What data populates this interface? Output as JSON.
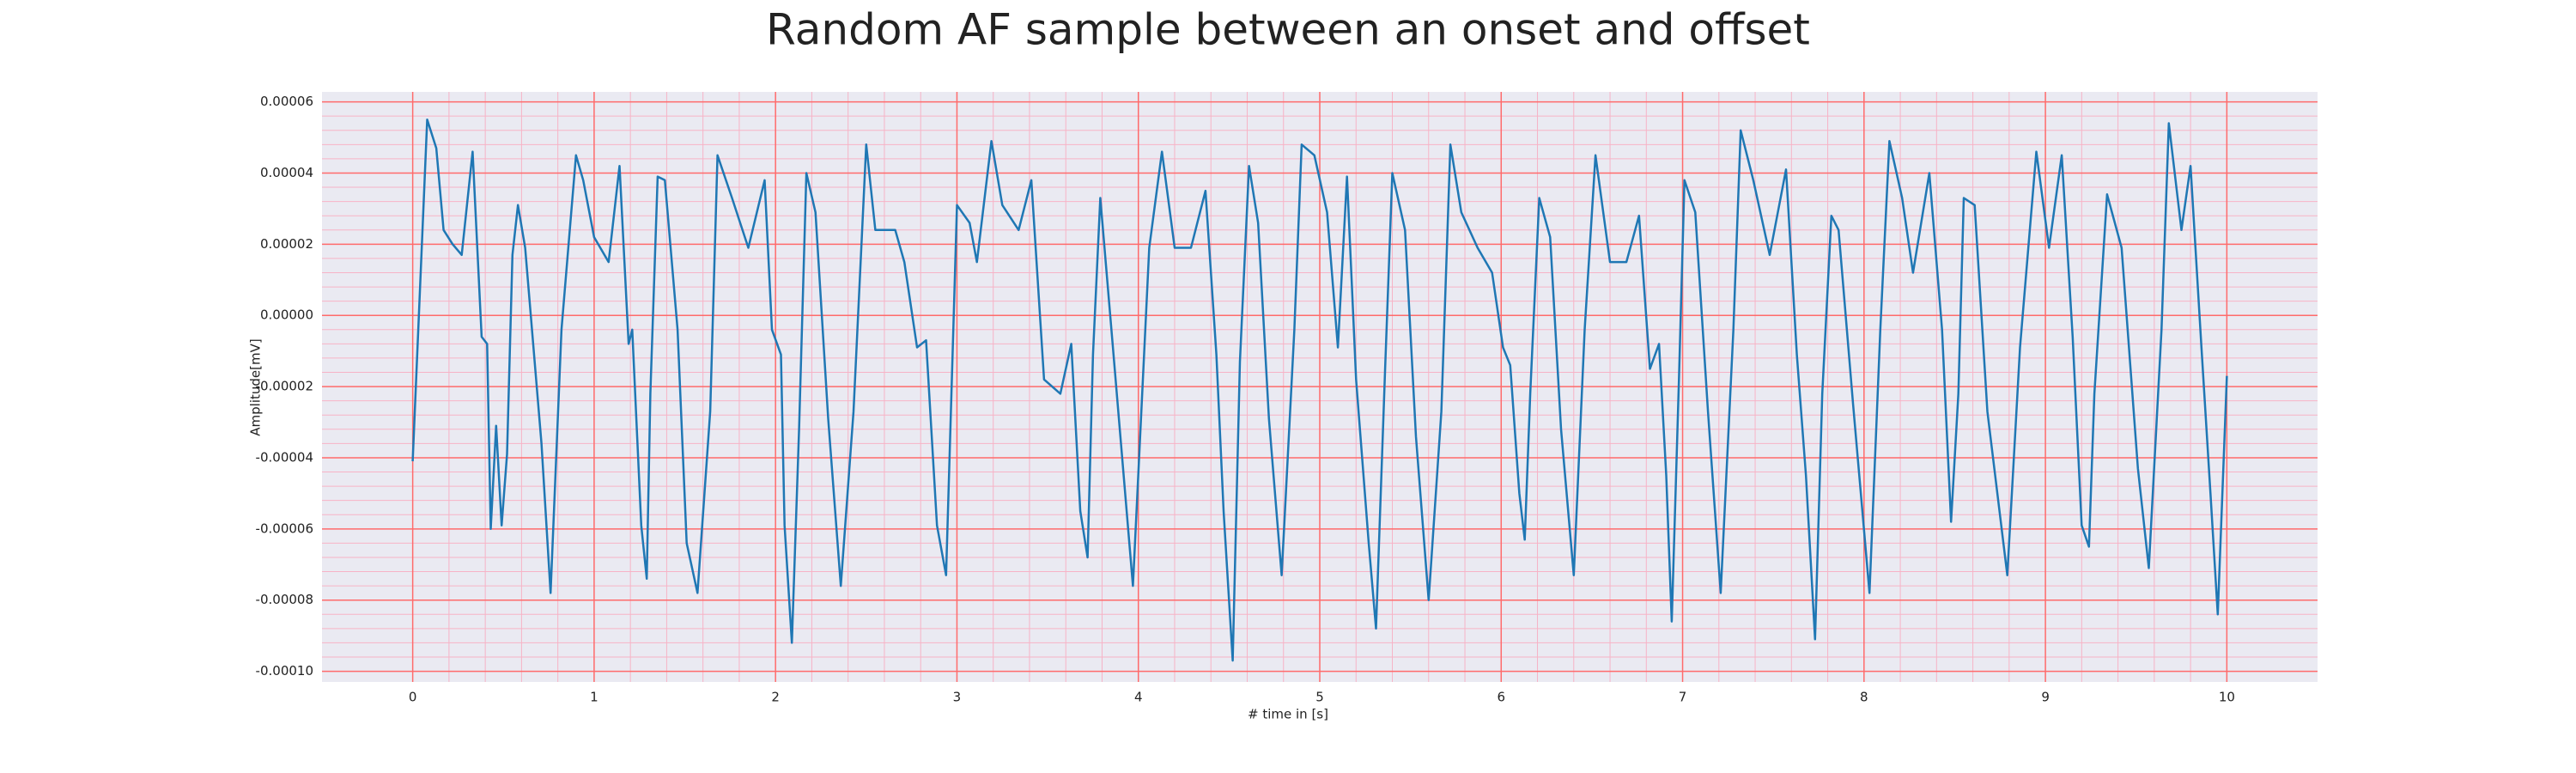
{
  "chart_data": {
    "type": "line",
    "title": "Random AF sample between an onset and offset",
    "xlabel": "# time in [s]",
    "ylabel": "Amplitude[mV]",
    "xlim": [
      -0.5,
      10.5
    ],
    "ylim": [
      -0.000103,
      6.28e-05
    ],
    "xticks": [
      0,
      1,
      2,
      3,
      4,
      5,
      6,
      7,
      8,
      9,
      10
    ],
    "yticks": [
      {
        "value": -0.0001,
        "label": "-0.00010"
      },
      {
        "value": -8e-05,
        "label": "-0.00008"
      },
      {
        "value": -6e-05,
        "label": "-0.00006"
      },
      {
        "value": -4e-05,
        "label": "-0.00004"
      },
      {
        "value": -2e-05,
        "label": "-0.00002"
      },
      {
        "value": 0,
        "label": "0.00000"
      },
      {
        "value": 2e-05,
        "label": "0.00002"
      },
      {
        "value": 4e-05,
        "label": "0.00004"
      },
      {
        "value": 6e-05,
        "label": "0.00006"
      }
    ],
    "grid": true,
    "grid_color": "#ff6b6b",
    "minor_grid": true,
    "minor_grid_color": "#f7b3c6",
    "background": "#eaeaf2",
    "series": [
      {
        "color": "#1f77b4",
        "x": [
          0,
          0.08,
          0.13,
          0.17,
          0.22,
          0.27,
          0.33,
          0.38,
          0.41,
          0.43,
          0.46,
          0.49,
          0.52,
          0.55,
          0.58,
          0.62,
          0.71,
          0.76,
          0.82,
          0.9,
          0.94,
          1.0,
          1.08,
          1.14,
          1.19,
          1.21,
          1.26,
          1.29,
          1.31,
          1.35,
          1.39,
          1.46,
          1.51,
          1.57,
          1.64,
          1.68,
          1.76,
          1.85,
          1.94,
          1.98,
          2.03,
          2.05,
          2.09,
          2.13,
          2.17,
          2.22,
          2.29,
          2.36,
          2.43,
          2.5,
          2.55,
          2.66,
          2.71,
          2.78,
          2.83,
          2.89,
          2.94,
          3.0,
          3.07,
          3.11,
          3.19,
          3.25,
          3.34,
          3.41,
          3.48,
          3.57,
          3.63,
          3.68,
          3.72,
          3.75,
          3.79,
          3.86,
          3.97,
          4.06,
          4.13,
          4.2,
          4.29,
          4.37,
          4.43,
          4.47,
          4.52,
          4.56,
          4.61,
          4.66,
          4.72,
          4.79,
          4.86,
          4.9,
          4.97,
          5.04,
          5.1,
          5.15,
          5.2,
          5.27,
          5.31,
          5.36,
          5.4,
          5.47,
          5.53,
          5.6,
          5.67,
          5.72,
          5.78,
          5.87,
          5.95,
          6.01,
          6.05,
          6.1,
          6.13,
          6.16,
          6.21,
          6.27,
          6.33,
          6.4,
          6.46,
          6.52,
          6.6,
          6.69,
          6.76,
          6.82,
          6.87,
          6.91,
          6.94,
          6.98,
          7.01,
          7.07,
          7.14,
          7.21,
          7.28,
          7.32,
          7.39,
          7.48,
          7.57,
          7.63,
          7.68,
          7.73,
          7.77,
          7.82,
          7.86,
          7.94,
          8.03,
          8.09,
          8.14,
          8.21,
          8.27,
          8.36,
          8.43,
          8.48,
          8.52,
          8.55,
          8.61,
          8.68,
          8.79,
          8.86,
          8.95,
          9.02,
          9.09,
          9.15,
          9.2,
          9.24,
          9.27,
          9.34,
          9.42,
          9.51,
          9.57,
          9.64,
          9.68,
          9.75,
          9.8,
          9.86,
          9.91,
          9.95,
          10.0
        ],
        "values": [
          -4.1e-05,
          5.5e-05,
          4.7e-05,
          2.4e-05,
          2e-05,
          1.7e-05,
          4.6e-05,
          -6e-06,
          -8e-06,
          -6e-05,
          -3.1e-05,
          -5.9e-05,
          -3.9e-05,
          1.7e-05,
          3.1e-05,
          1.9e-05,
          -3.6e-05,
          -7.8e-05,
          -4e-06,
          4.5e-05,
          3.8e-05,
          2.2e-05,
          1.5e-05,
          4.2e-05,
          -8e-06,
          -4e-06,
          -5.9e-05,
          -7.4e-05,
          -2.2e-05,
          3.9e-05,
          3.8e-05,
          -4e-06,
          -6.4e-05,
          -7.8e-05,
          -2.7e-05,
          4.5e-05,
          3.3e-05,
          1.9e-05,
          3.8e-05,
          -4e-06,
          -1.1e-05,
          -5.9e-05,
          -9.2e-05,
          -3.2e-05,
          4e-05,
          2.9e-05,
          -2.9e-05,
          -7.6e-05,
          -2.7e-05,
          4.8e-05,
          2.4e-05,
          2.4e-05,
          1.5e-05,
          -9e-06,
          -7e-06,
          -5.9e-05,
          -7.3e-05,
          3.1e-05,
          2.6e-05,
          1.5e-05,
          4.9e-05,
          3.1e-05,
          2.4e-05,
          3.8e-05,
          -1.8e-05,
          -2.2e-05,
          -8e-06,
          -5.5e-05,
          -6.8e-05,
          -1.1e-05,
          3.3e-05,
          -9e-06,
          -7.6e-05,
          1.9e-05,
          4.6e-05,
          1.9e-05,
          1.9e-05,
          3.5e-05,
          -1.1e-05,
          -5.5e-05,
          -9.7e-05,
          -1.3e-05,
          4.2e-05,
          2.6e-05,
          -2.9e-05,
          -7.3e-05,
          -4e-06,
          4.8e-05,
          4.5e-05,
          2.9e-05,
          -9e-06,
          3.9e-05,
          -1.8e-05,
          -6.4e-05,
          -8.8e-05,
          -1.5e-05,
          4e-05,
          2.4e-05,
          -3.4e-05,
          -8e-05,
          -2.7e-05,
          4.8e-05,
          2.9e-05,
          1.9e-05,
          1.2e-05,
          -9e-06,
          -1.4e-05,
          -5e-05,
          -6.3e-05,
          -2.2e-05,
          3.3e-05,
          2.2e-05,
          -3.2e-05,
          -7.3e-05,
          -4e-06,
          4.5e-05,
          1.5e-05,
          1.5e-05,
          2.8e-05,
          -1.5e-05,
          -8e-06,
          -4.5e-05,
          -8.6e-05,
          -1.8e-05,
          3.8e-05,
          2.9e-05,
          -2.7e-05,
          -7.8e-05,
          -4e-06,
          5.2e-05,
          3.8e-05,
          1.7e-05,
          4.1e-05,
          -1.1e-05,
          -4.5e-05,
          -9.1e-05,
          -2.2e-05,
          2.8e-05,
          2.4e-05,
          -2.5e-05,
          -7.8e-05,
          -4e-06,
          4.9e-05,
          3.3e-05,
          1.2e-05,
          4e-05,
          -4e-06,
          -5.8e-05,
          -2.2e-05,
          3.3e-05,
          3.1e-05,
          -2.7e-05,
          -7.3e-05,
          -9e-06,
          4.6e-05,
          1.9e-05,
          4.5e-05,
          -6e-06,
          -5.9e-05,
          -6.5e-05,
          -2.2e-05,
          3.4e-05,
          1.9e-05,
          -4.3e-05,
          -7.1e-05,
          -4e-06,
          5.4e-05,
          2.4e-05,
          4.2e-05,
          -9e-06,
          -5e-05,
          -8.4e-05,
          -1.7e-05
        ]
      }
    ]
  }
}
